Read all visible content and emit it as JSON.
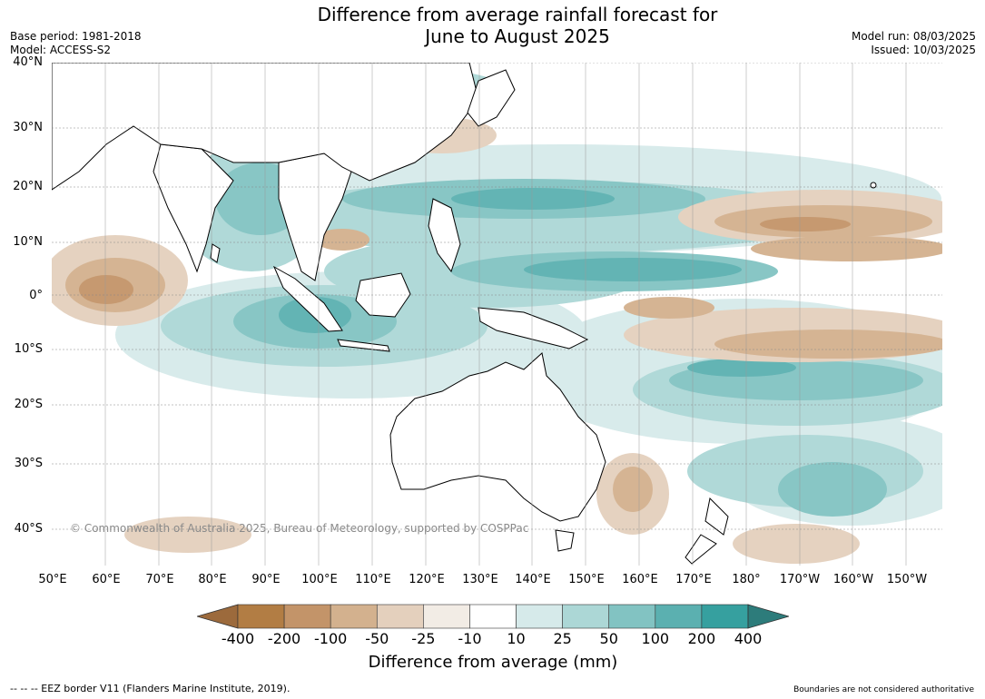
{
  "title_line1": "Difference from average rainfall forecast for",
  "title_line2": "June to August 2025",
  "base_period": "Base period: 1981-2018",
  "model": "Model: ACCESS-S2",
  "model_run": "Model run: 08/03/2025",
  "issued": "Issued: 10/03/2025",
  "copyright": "© Commonwealth of Australia 2025, Bureau of Meteorology, supported by COSPPac",
  "lat_labels": [
    "40°N",
    "30°N",
    "20°N",
    "10°N",
    "0°",
    "10°S",
    "20°S",
    "30°S",
    "40°S"
  ],
  "lon_labels": [
    "50°E",
    "60°E",
    "70°E",
    "80°E",
    "90°E",
    "100°E",
    "110°E",
    "120°E",
    "130°E",
    "140°E",
    "150°E",
    "160°E",
    "170°E",
    "180°",
    "170°W",
    "160°W",
    "150°W"
  ],
  "colorbar": {
    "ticks": [
      "-400",
      "-200",
      "-100",
      "-50",
      "-25",
      "-10",
      "10",
      "25",
      "50",
      "100",
      "200",
      "400"
    ],
    "colors": [
      "#9c6a3c",
      "#b27d44",
      "#c39469",
      "#d3b18e",
      "#e4d0bd",
      "#f2ece5",
      "#ffffff",
      "#d6eaea",
      "#acd7d6",
      "#82c3c2",
      "#5bb0b0",
      "#36a09f",
      "#2d7c7b"
    ],
    "title": "Difference from average (mm)"
  },
  "legend_eez": "--  --  -- EEZ border V11 (Flanders Marine Institute, 2019).",
  "disclaimer": "Boundaries are not considered authoritative"
}
